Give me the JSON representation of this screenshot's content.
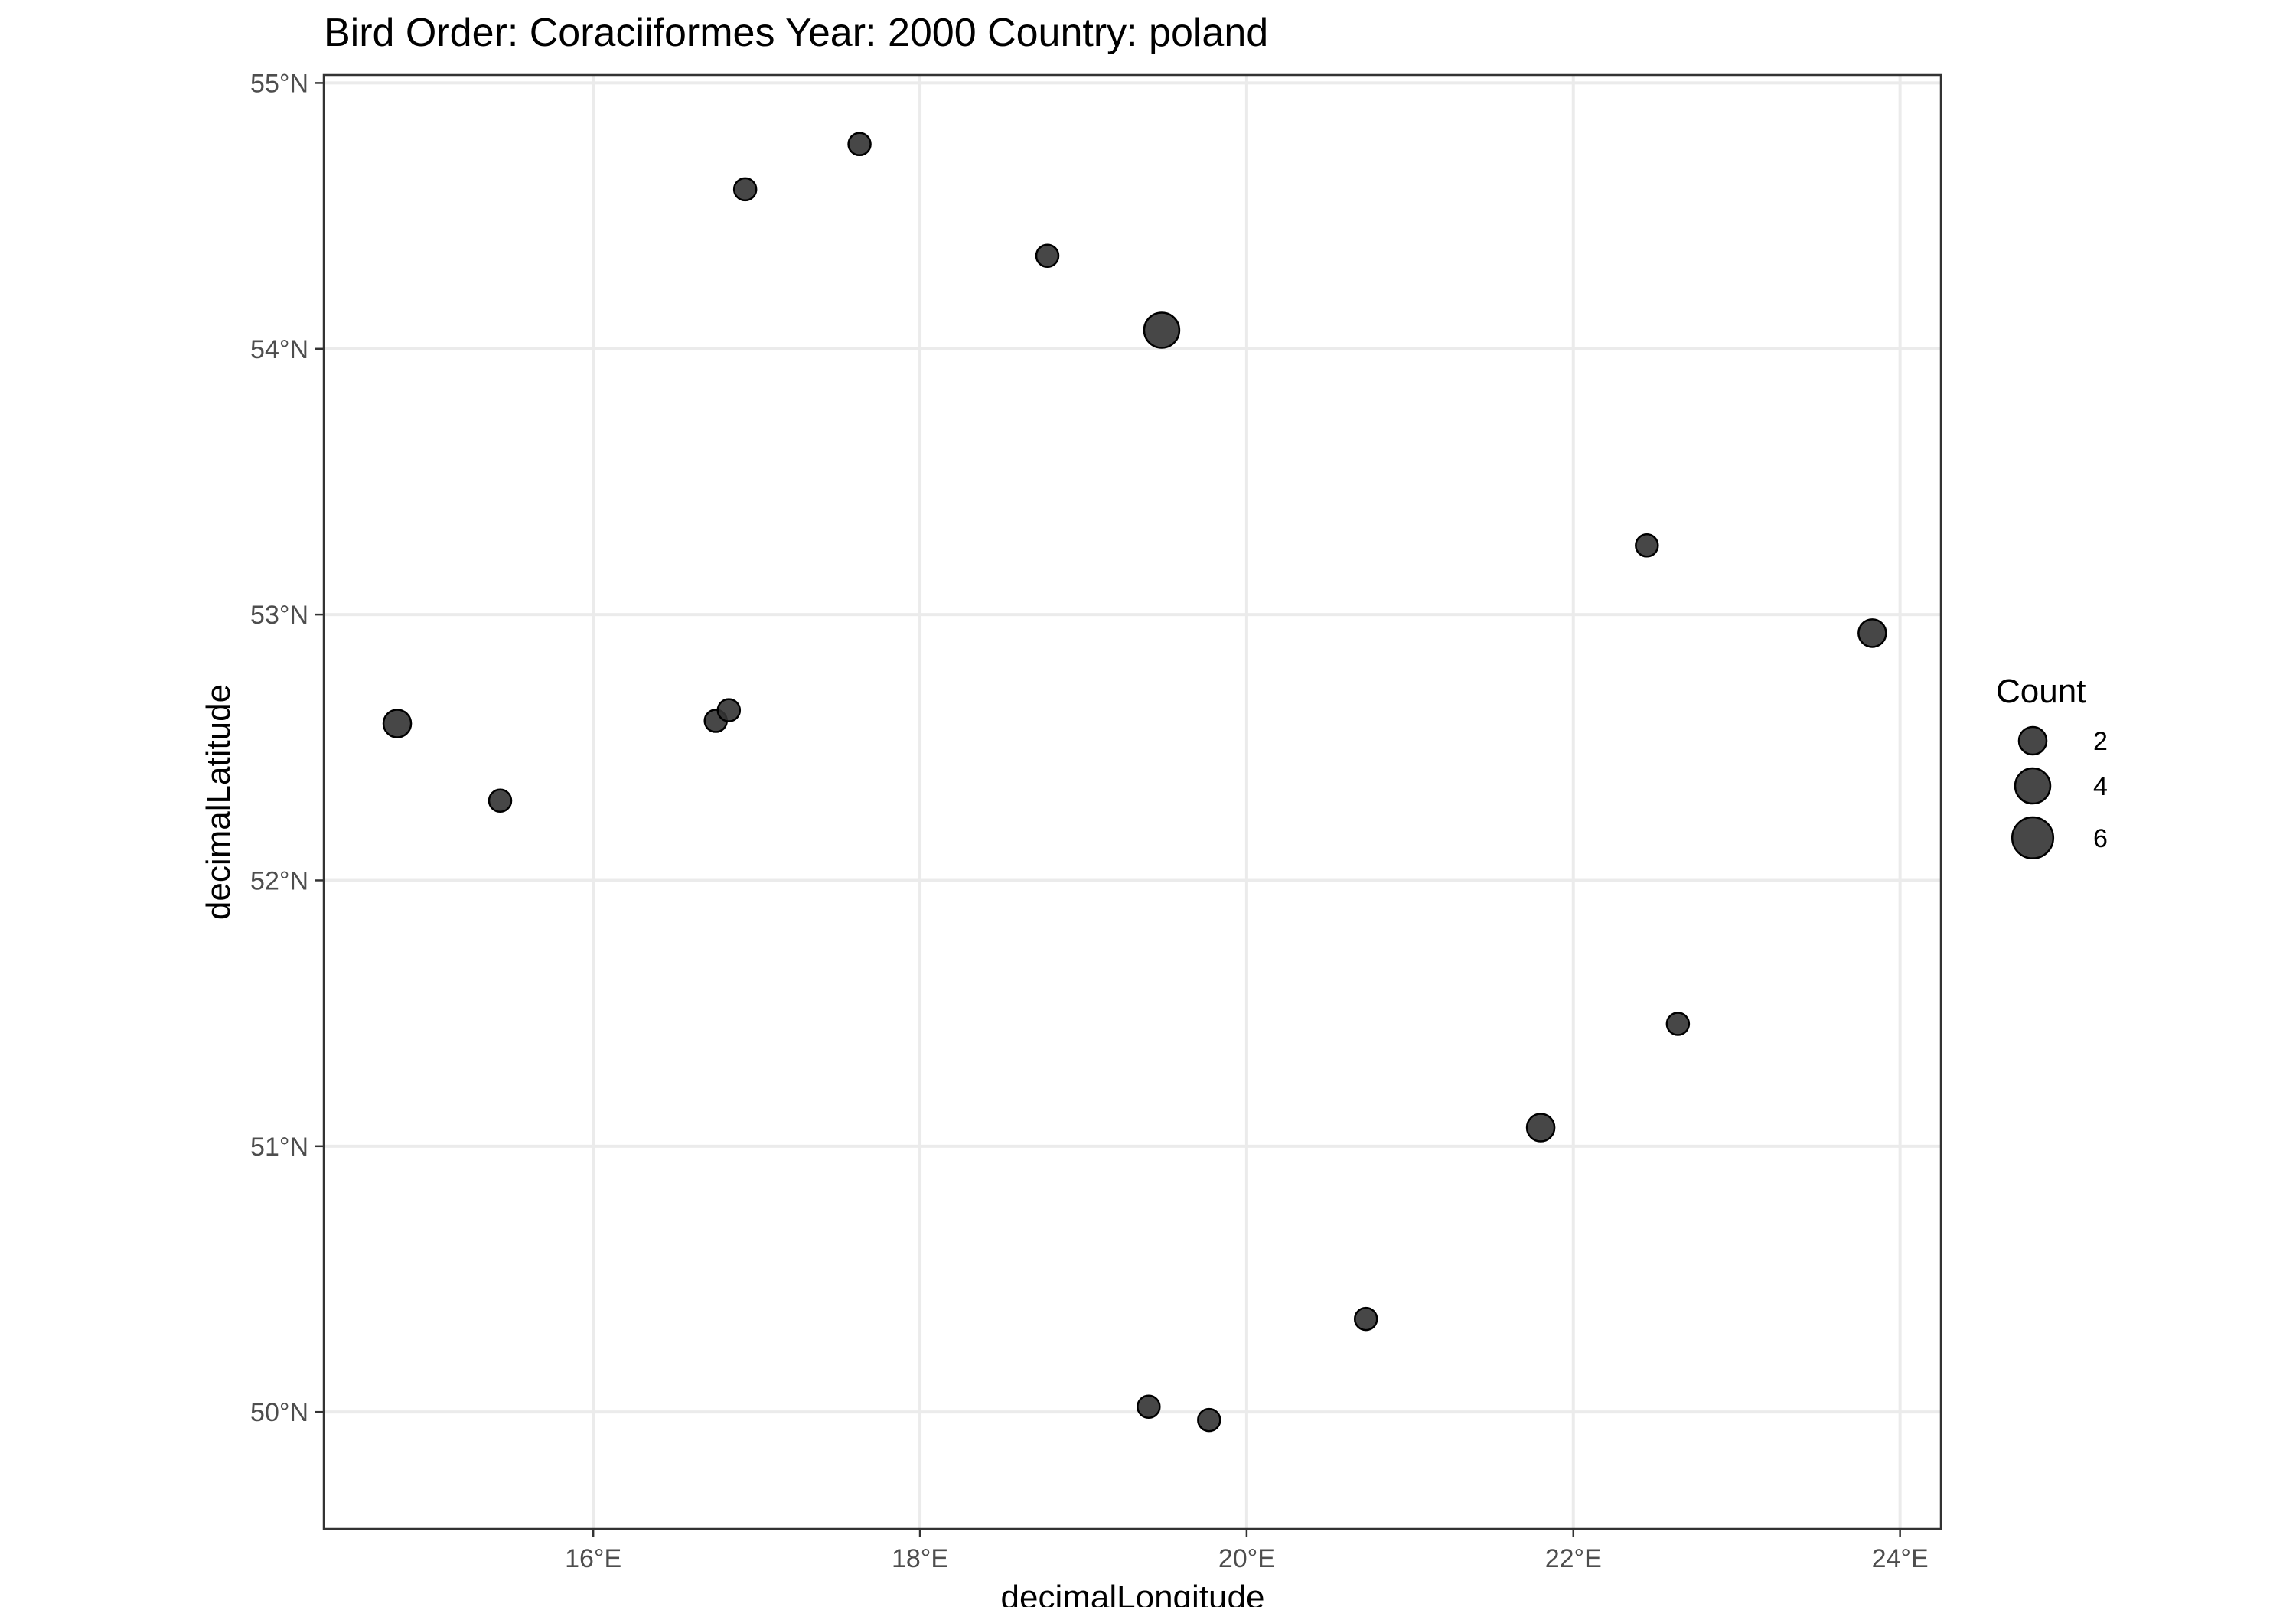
{
  "chart_data": {
    "type": "scatter",
    "title": "Bird Order: Coraciiformes Year: 2000 Country: poland",
    "xlabel": "decimalLongitude",
    "ylabel": "decimalLatitude",
    "xlim": [
      14.35,
      24.25
    ],
    "ylim": [
      49.56,
      55.03
    ],
    "x_ticks": [
      16,
      18,
      20,
      22,
      24
    ],
    "x_tick_labels": [
      "16°E",
      "18°E",
      "20°E",
      "22°E",
      "24°E"
    ],
    "y_ticks": [
      50,
      51,
      52,
      53,
      54,
      55
    ],
    "y_tick_labels": [
      "50°N",
      "51°N",
      "52°N",
      "53°N",
      "54°N",
      "55°N"
    ],
    "grid": true,
    "point_color": "#333333",
    "point_opacity": 0.9,
    "size_legend": {
      "title": "Count",
      "position": "right",
      "entries": [
        {
          "label": "2",
          "value": 2
        },
        {
          "label": "4",
          "value": 4
        },
        {
          "label": "6",
          "value": 6
        }
      ]
    },
    "points": [
      {
        "lon": 17.63,
        "lat": 54.77,
        "count": 1
      },
      {
        "lon": 16.93,
        "lat": 54.6,
        "count": 1
      },
      {
        "lon": 18.78,
        "lat": 54.35,
        "count": 1
      },
      {
        "lon": 19.48,
        "lat": 54.07,
        "count": 4
      },
      {
        "lon": 22.45,
        "lat": 53.26,
        "count": 1
      },
      {
        "lon": 23.83,
        "lat": 52.93,
        "count": 2
      },
      {
        "lon": 14.8,
        "lat": 52.59,
        "count": 2
      },
      {
        "lon": 16.75,
        "lat": 52.6,
        "count": 1
      },
      {
        "lon": 16.83,
        "lat": 52.64,
        "count": 1
      },
      {
        "lon": 15.43,
        "lat": 52.3,
        "count": 1
      },
      {
        "lon": 22.64,
        "lat": 51.46,
        "count": 1
      },
      {
        "lon": 21.8,
        "lat": 51.07,
        "count": 2
      },
      {
        "lon": 20.73,
        "lat": 50.35,
        "count": 1
      },
      {
        "lon": 19.4,
        "lat": 50.02,
        "count": 1
      },
      {
        "lon": 19.77,
        "lat": 49.97,
        "count": 1
      }
    ]
  }
}
